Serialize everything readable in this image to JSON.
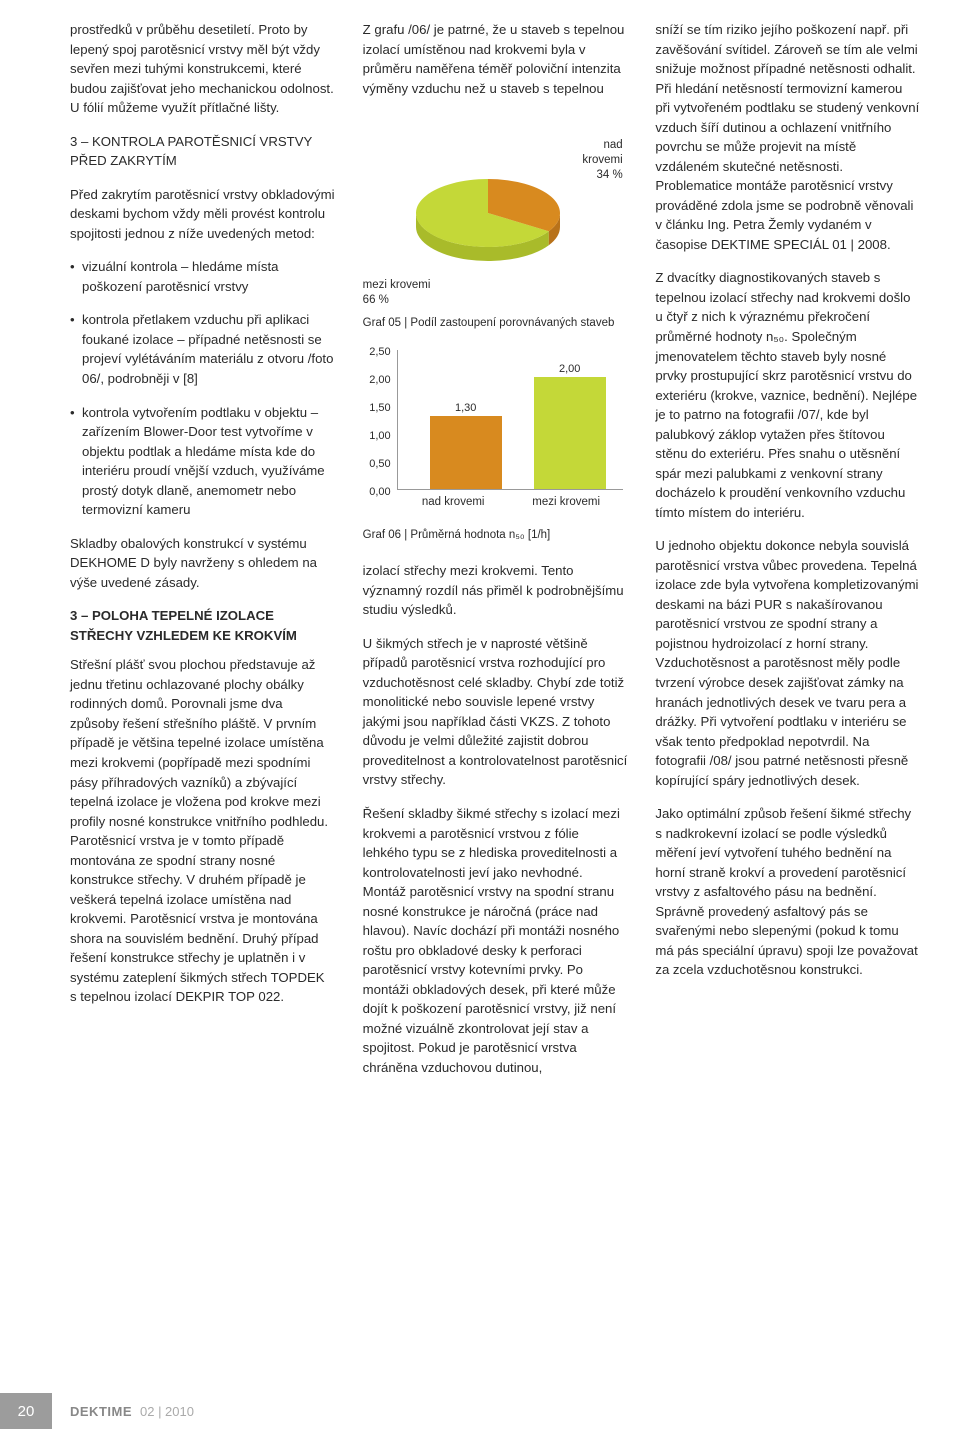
{
  "col1": {
    "p1": "prostředků v průběhu desetiletí. Proto by lepený spoj parotěsnicí vrstvy měl být vždy sevřen mezi tuhými konstrukcemi, které budou zajišťovat jeho mechanickou odolnost. U fólií můžeme využít přítlačné lišty.",
    "p2": "3 – KONTROLA PAROTĚSNICÍ VRSTVY PŘED ZAKRYTÍM",
    "p3": "Před zakrytím parotěsnicí vrstvy obkladovými deskami bychom vždy měli provést kontrolu spojitosti jednou z níže uvedených metod:",
    "li1": "vizuální kontrola – hledáme místa poškození parotěsnicí vrstvy",
    "li2": "kontrola přetlakem vzduchu při aplikaci foukané izolace – případné netěsnosti se projeví vylétáváním materiálu z otvoru /foto 06/, podrobněji v [8]",
    "li3": "kontrola vytvořením podtlaku v objektu – zařízením Blower-Door test vytvoříme v objektu podtlak a hledáme místa kde do interiéru proudí vnější vzduch, využíváme prostý dotyk dlaně, anemometr nebo termovizní kameru",
    "p4": "Skladby obalových konstrukcí v systému DEKHOME D byly navrženy s ohledem na výše uvedené zásady.",
    "h3a": "3 – POLOHA TEPELNÉ IZOLACE STŘECHY VZHLEDEM KE KROKVÍM",
    "p5": "Střešní plášť svou plochou představuje až jednu třetinu ochlazované plochy obálky rodinných domů. Porovnali jsme dva způsoby řešení střešního pláště. V prvním případě je většina tepelné izolace umístěna mezi krokvemi (popřípadě mezi spodními pásy příhradových vazníků) a zbývající tepelná izolace je vložena pod krokve mezi profily nosné konstrukce vnitřního podhledu. Parotěsnicí vrstva je v tomto případě montována ze spodní strany nosné konstrukce střechy. V druhém případě je veškerá tepelná izolace umístěna nad krokvemi. Parotěsnicí vrstva je montována shora na souvislém bednění. Druhý případ řešení konstrukce střechy je uplatněn i v systému zateplení šikmých střech TOPDEK s tepelnou izolací DEKPIR TOP 022."
  },
  "col2": {
    "p1": "Z grafu /06/ je patrné, že u staveb s tepelnou izolací umístěnou nad krokvemi byla v průměru naměřena téměř poloviční intenzita výměny vzduchu než u staveb s tepelnou",
    "pie": {
      "label_right_top": "nad",
      "label_right_mid": "krovemi",
      "label_right_val": "34 %",
      "label_left_top": "mezi krovemi",
      "label_left_val": "66 %",
      "slice1_color": "#d88a1f",
      "slice1_pct": 34,
      "slice2_color": "#c4d838",
      "slice2_pct": 66,
      "shadow_color": "#a9bb2a"
    },
    "cap1a": "Graf 05 |",
    "cap1b": "Podíl zastoupení porovnávaných staveb",
    "bar": {
      "yticks": [
        "2,50",
        "2,00",
        "1,50",
        "1,00",
        "0,50",
        "0,00"
      ],
      "ymax": 2.5,
      "cats": [
        "nad krovemi",
        "mezi krovemi"
      ],
      "vals": [
        1.3,
        2.0
      ],
      "val_labels": [
        "1,30",
        "2,00"
      ],
      "colors": [
        "#d88a1f",
        "#c4d838"
      ]
    },
    "cap2a": "Graf 06 |",
    "cap2b": "Průměrná hodnota n₅₀ [1/h]",
    "p2": "izolací střechy mezi krokvemi. Tento významný rozdíl nás přiměl k podrobnějšímu studiu výsledků.",
    "p3": "U šikmých střech je v naprosté většině případů parotěsnicí vrstva rozhodující pro vzduchotěsnost celé skladby. Chybí zde totiž monolitické nebo souvisle lepené vrstvy jakými jsou například části VKZS. Z tohoto důvodu je velmi důležité zajistit dobrou proveditelnost a kontrolovatelnost parotěsnicí vrstvy střechy.",
    "p4": "Řešení skladby šikmé střechy s izolací mezi krokvemi a parotěsnicí vrstvou z fólie lehkého typu se z hlediska proveditelnosti a kontrolovatelnosti jeví jako nevhodné. Montáž parotěsnicí vrstvy na spodní stranu nosné konstrukce je náročná (práce nad hlavou). Navíc dochází při montáži nosného roštu pro obkladové desky k perforaci parotěsnicí vrstvy kotevními prvky. Po montáži obkladových desek, při které může dojít k poškození parotěsnicí vrstvy, již není možné vizuálně zkontrolovat její stav a spojitost. Pokud je parotěsnicí vrstva chráněna vzduchovou dutinou,"
  },
  "col3": {
    "p1": "sníží se tím riziko jejího poškození např. při zavěšování svítidel. Zároveň se tím ale velmi snižuje možnost případné netěsnosti odhalit. Při hledání netěsností termovizní kamerou při vytvořeném podtlaku se studený venkovní vzduch šíří dutinou a ochlazení vnitřního povrchu se může projevit na místě vzdáleném skutečné netěsnosti. Problematice montáže parotěsnicí vrstvy prováděné zdola jsme se podrobně věnovali v článku Ing. Petra Žemly vydaném v časopise DEKTIME SPECIÁL 01 | 2008.",
    "p2": "Z dvacítky diagnostikovaných staveb s tepelnou izolací střechy nad krokvemi došlo u čtyř z nich k výraznému překročení průměrné hodnoty n₅₀. Společným jmenovatelem těchto staveb byly nosné prvky prostupující skrz parotěsnicí vrstvu do exteriéru (krokve, vaznice, bednění). Nejlépe je to patrno na fotografii /07/, kde byl palubkový záklop vytažen přes štítovou stěnu do exteriéru. Přes snahu o utěsnění spár mezi palubkami z venkovní strany docházelo k proudění venkovního vzduchu tímto místem do interiéru.",
    "p3": "U jednoho objektu dokonce nebyla souvislá parotěsnicí vrstva vůbec provedena. Tepelná izolace zde byla vytvořena kompletizovanými deskami na bázi PUR s nakašírovanou parotěsnicí vrstvou ze spodní strany a pojistnou hydroizolací z horní strany. Vzduchotěsnost a parotěsnost měly podle tvrzení výrobce desek zajišťovat zámky na hranách jednotlivých desek ve tvaru pera a drážky. Při vytvoření podtlaku v interiéru se však tento předpoklad nepotvrdil. Na fotografii /08/ jsou patrné netěsnosti přesně kopírující spáry jednotlivých desek.",
    "p4": "Jako optimální způsob řešení šikmé střechy s nadkrokevní izolací se podle výsledků měření jeví vytvoření tuhého bednění na horní straně krokví a provedení parotěsnicí vrstvy z asfaltového pásu na bednění. Správně provedený asfaltový pás se svařenými nebo slepenými (pokud k tomu má pás speciální úpravu) spoji lze považovat za zcela vzduchotěsnou konstrukci."
  },
  "footer": {
    "page": "20",
    "mag": "DEKTIME",
    "issue": "02 | 2010"
  }
}
